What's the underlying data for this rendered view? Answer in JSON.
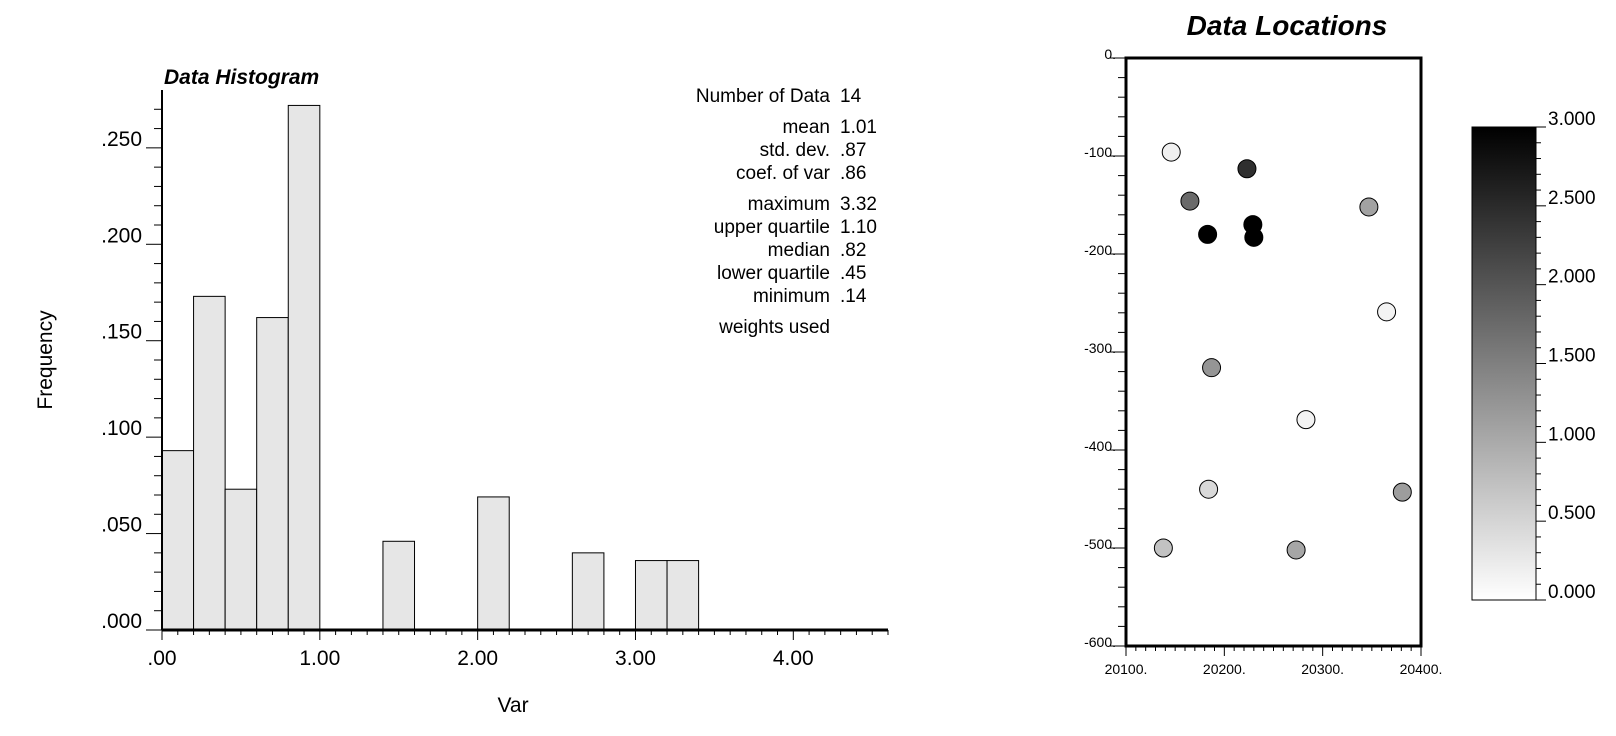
{
  "chart_data": [
    {
      "type": "bar",
      "title": "Data Histogram",
      "xlabel": "Var",
      "ylabel": "Frequency",
      "xlim": [
        0,
        4.6
      ],
      "ylim": [
        0,
        0.28
      ],
      "bin_width": 0.2,
      "bins_start": [
        0.0,
        0.2,
        0.4,
        0.6,
        0.8,
        1.4,
        2.0,
        2.6,
        3.0,
        3.2
      ],
      "values": [
        0.093,
        0.173,
        0.073,
        0.162,
        0.272,
        0.046,
        0.069,
        0.04,
        0.036,
        0.036
      ],
      "x_ticks": [
        ".00",
        "1.00",
        "2.00",
        "3.00",
        "4.00"
      ],
      "x_tick_values": [
        0,
        1,
        2,
        3,
        4
      ],
      "y_ticks": [
        ".000",
        ".050",
        ".100",
        ".150",
        ".200",
        ".250"
      ],
      "y_tick_values": [
        0,
        0.05,
        0.1,
        0.15,
        0.2,
        0.25
      ],
      "bar_color": "#e6e6e6",
      "stats": [
        {
          "label": "Number of Data",
          "value": "14"
        },
        {
          "label": "mean",
          "value": "1.01"
        },
        {
          "label": "std. dev.",
          "value": ".87"
        },
        {
          "label": "coef. of var",
          "value": ".86"
        },
        {
          "label": "maximum",
          "value": "3.32"
        },
        {
          "label": "upper quartile",
          "value": "1.10"
        },
        {
          "label": "median",
          "value": ".82"
        },
        {
          "label": "lower quartile",
          "value": ".45"
        },
        {
          "label": "minimum",
          "value": ".14"
        },
        {
          "label": "weights used",
          "value": ""
        }
      ]
    },
    {
      "type": "scatter",
      "title": "Data Locations",
      "xlim": [
        20100,
        20400
      ],
      "ylim": [
        -600,
        0
      ],
      "x_ticks": [
        "20100.",
        "20200.",
        "20300.",
        "20400."
      ],
      "x_tick_values": [
        20100,
        20200,
        20300,
        20400
      ],
      "y_ticks": [
        "0.",
        "-100.",
        "-200.",
        "-300.",
        "-400.",
        "-500.",
        "-600."
      ],
      "y_tick_values": [
        0,
        -100,
        -200,
        -300,
        -400,
        -500,
        -600
      ],
      "points": [
        {
          "x": 20146,
          "y": -96,
          "value": 0.18
        },
        {
          "x": 20223,
          "y": -113,
          "value": 2.45
        },
        {
          "x": 20165,
          "y": -146,
          "value": 1.75
        },
        {
          "x": 20347,
          "y": -152,
          "value": 1.1
        },
        {
          "x": 20229,
          "y": -170,
          "value": 3.2
        },
        {
          "x": 20183,
          "y": -180,
          "value": 3.1
        },
        {
          "x": 20230,
          "y": -183,
          "value": 3.32
        },
        {
          "x": 20365,
          "y": -259,
          "value": 0.14
        },
        {
          "x": 20187,
          "y": -316,
          "value": 1.25
        },
        {
          "x": 20283,
          "y": -369,
          "value": 0.14
        },
        {
          "x": 20184,
          "y": -440,
          "value": 0.45
        },
        {
          "x": 20381,
          "y": -443,
          "value": 1.15
        },
        {
          "x": 20138,
          "y": -500,
          "value": 0.72
        },
        {
          "x": 20273,
          "y": -502,
          "value": 1.05
        }
      ],
      "colorbar": {
        "min": 0,
        "max": 3,
        "ticks": [
          "3.000",
          "2.500",
          "2.000",
          "1.500",
          "1.000",
          "0.500",
          "0.000"
        ],
        "tick_values": [
          3,
          2.5,
          2,
          1.5,
          1,
          0.5,
          0
        ],
        "low_color": "#ffffff",
        "high_color": "#000000"
      }
    }
  ]
}
